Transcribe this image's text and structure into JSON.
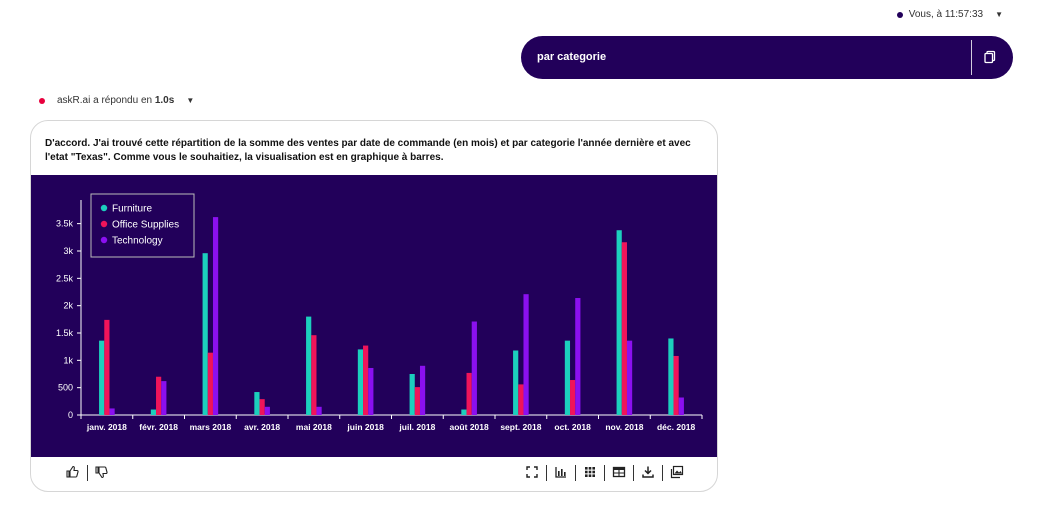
{
  "user_message": {
    "meta": "Vous, à 11:57:33",
    "text": "par categorie",
    "dot_color": "#22005a"
  },
  "bot_message": {
    "meta_prefix": "askR.ai a répondu en ",
    "meta_time": "1.0s",
    "dot_color": "#e8003d",
    "text": "D'accord. J'ai trouvé cette répartition de la somme des ventes par date de commande (en mois) et par categorie l'année dernière et avec l'etat \"Texas\". Comme vous le souhaitiez, la visualisation est en graphique à barres."
  },
  "chart_data": {
    "type": "bar",
    "categories": [
      "janv. 2018",
      "févr. 2018",
      "mars 2018",
      "avr. 2018",
      "mai 2018",
      "juin 2018",
      "juil. 2018",
      "août 2018",
      "sept. 2018",
      "oct. 2018",
      "nov. 2018",
      "déc. 2018"
    ],
    "series": [
      {
        "name": "Furniture",
        "color": "#1ccfbd",
        "values": [
          1360,
          100,
          2960,
          420,
          1800,
          1200,
          750,
          100,
          1180,
          1360,
          3380,
          1400
        ]
      },
      {
        "name": "Office Supplies",
        "color": "#f0145a",
        "values": [
          1740,
          700,
          1140,
          290,
          1460,
          1270,
          510,
          770,
          560,
          640,
          3160,
          1080
        ]
      },
      {
        "name": "Technology",
        "color": "#8b10f0",
        "values": [
          120,
          620,
          3620,
          150,
          150,
          860,
          900,
          1710,
          2210,
          2140,
          1360,
          320
        ]
      }
    ],
    "ylim": [
      0,
      3750
    ],
    "yticks": [
      "0",
      "500",
      "1k",
      "1.5k",
      "2k",
      "2.5k",
      "3k",
      "3.5k"
    ],
    "ytick_values": [
      0,
      500,
      1000,
      1500,
      2000,
      2500,
      3000,
      3500
    ],
    "legend_position": "top-left",
    "background": "#22005a"
  },
  "footer": {
    "left_icons": [
      "thumbs-up-icon",
      "thumbs-down-icon"
    ],
    "right_icons": [
      "fullscreen-icon",
      "bar-chart-icon",
      "grid-icon",
      "table-icon",
      "download-icon",
      "image-gallery-icon"
    ]
  }
}
